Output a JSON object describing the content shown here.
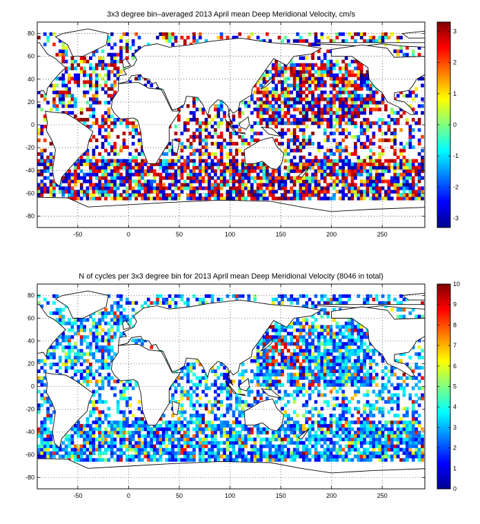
{
  "chart_data": [
    {
      "type": "heatmap",
      "title": "3x3 degree bin–averaged 2013 April mean Deep Meridional Velocity, cm/s",
      "xlabel": "",
      "ylabel": "",
      "xlim": [
        -90,
        292
      ],
      "ylim": [
        -90,
        90
      ],
      "xticks": [
        -50,
        0,
        50,
        100,
        150,
        200,
        250
      ],
      "yticks": [
        80,
        60,
        40,
        20,
        0,
        -20,
        -40,
        -60,
        -80
      ],
      "colorbar": {
        "range": [
          -3.3,
          3.3
        ],
        "ticks": [
          3,
          2,
          1,
          0,
          -1,
          -2,
          -3
        ],
        "colormap": "jet"
      },
      "grid": true,
      "bin_size_deg": 3,
      "data_fill": "speckled"
    },
    {
      "type": "heatmap",
      "title": "N of cycles per 3x3 degree bin for 2013 April mean Deep Meridional Velocity (8046 in total)",
      "xlabel": "",
      "ylabel": "",
      "xlim": [
        -90,
        292
      ],
      "ylim": [
        -90,
        90
      ],
      "xticks": [
        -50,
        0,
        50,
        100,
        150,
        200,
        250
      ],
      "yticks": [
        80,
        60,
        40,
        20,
        0,
        -20,
        -40,
        -60,
        -80
      ],
      "colorbar": {
        "range": [
          0,
          10
        ],
        "ticks": [
          10,
          9,
          8,
          7,
          6,
          5,
          4,
          3,
          2,
          1,
          0
        ],
        "colormap": "jet"
      },
      "grid": true,
      "bin_size_deg": 3,
      "total_cycles": 8046,
      "data_fill": "speckled"
    }
  ]
}
